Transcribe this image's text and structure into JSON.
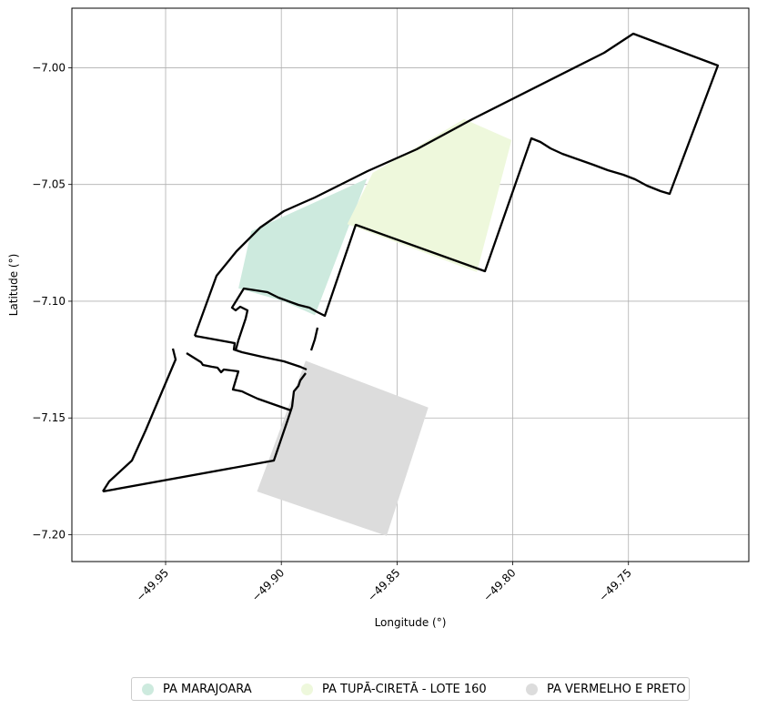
{
  "chart_data": {
    "type": "map",
    "xlabel": "Longitude (°)",
    "ylabel": "Latitude (°)",
    "xlim": [
      -49.9905,
      -49.698
    ],
    "ylim": [
      -7.2115,
      -6.9745
    ],
    "x_ticks": [
      -49.95,
      -49.9,
      -49.85,
      -49.8,
      -49.75
    ],
    "x_tick_labels": [
      "−49.95",
      "−49.90",
      "−49.85",
      "−49.80",
      "−49.75"
    ],
    "y_ticks": [
      -7.0,
      -7.05,
      -7.1,
      -7.15,
      -7.2
    ],
    "y_tick_labels": [
      "−7.00",
      "−7.05",
      "−7.10",
      "−7.15",
      "−7.20"
    ],
    "grid": true,
    "legend_position": "bottom-center",
    "areas": [
      {
        "name": "PA MARAJOARA",
        "color": "#cdeade",
        "coords": [
          [
            -49.913,
            -7.07
          ],
          [
            -49.863,
            -7.0475
          ],
          [
            -49.8855,
            -7.106
          ],
          [
            -49.899,
            -7.1
          ],
          [
            -49.9185,
            -7.0945
          ]
        ]
      },
      {
        "name": "PA TUPĀ-CIRETĀ - LOTE 160",
        "color": "#eef8dc",
        "coords": [
          [
            -49.8605,
            -7.045
          ],
          [
            -49.821,
            -7.022
          ],
          [
            -49.8005,
            -7.031
          ],
          [
            -49.8155,
            -7.0875
          ],
          [
            -49.8715,
            -7.067
          ]
        ]
      },
      {
        "name": "PA VERMELHO E PRETO",
        "color": "#dcdcdc",
        "coords": [
          [
            -49.8895,
            -7.1255
          ],
          [
            -49.8365,
            -7.1455
          ],
          [
            -49.8545,
            -7.2005
          ],
          [
            -49.9105,
            -7.1815
          ]
        ]
      }
    ],
    "boundaries": [
      {
        "name": "outer-boundary",
        "coords": [
          [
            -49.9795,
            -7.182
          ],
          [
            -49.976,
            -7.177
          ],
          [
            -49.965,
            -7.169
          ],
          [
            -49.952,
            -7.14
          ],
          [
            -49.9405,
            -7.1225
          ],
          [
            -49.9465,
            -7.1145
          ],
          [
            -49.9575,
            -7.1145
          ],
          [
            -49.9805,
            -7.1025
          ],
          [
            -49.9815,
            -7.09
          ],
          [
            -49.9365,
            -7.069
          ],
          [
            -49.927,
            -7.063
          ],
          [
            -49.917,
            -7.059
          ],
          [
            -49.907,
            -7.0555
          ],
          [
            -49.897,
            -7.0505
          ],
          [
            -49.8875,
            -7.0425
          ],
          [
            -49.874,
            -7.0335
          ],
          [
            -49.8555,
            -7.0205
          ],
          [
            -49.8355,
            -7.0055
          ],
          [
            -49.815,
            -6.993
          ],
          [
            -49.7785,
            -6.9805
          ],
          [
            -49.7365,
            -6.9855
          ],
          [
            -49.7145,
            -6.999
          ],
          [
            -49.7285,
            -7.0545
          ],
          [
            -49.741,
            -7.048
          ],
          [
            -49.7505,
            -7.047
          ],
          [
            -49.765,
            -7.044
          ],
          [
            -49.7825,
            -7.04
          ],
          [
            -49.797,
            -7.033
          ],
          [
            -49.7985,
            -7.0315
          ],
          [
            -49.8005,
            -7.031
          ],
          [
            -49.8155,
            -7.0875
          ],
          [
            -49.8715,
            -7.067
          ],
          [
            -49.8855,
            -7.106
          ],
          [
            -49.899,
            -7.1
          ]
        ]
      }
    ]
  },
  "legend": {
    "items": [
      {
        "label": "PA MARAJOARA",
        "color": "#cdeade"
      },
      {
        "label": "PA TUPĀ-CIRETĀ - LOTE 160",
        "color": "#eef8dc"
      },
      {
        "label": "PA VERMELHO E PRETO",
        "color": "#dcdcdc"
      }
    ]
  }
}
